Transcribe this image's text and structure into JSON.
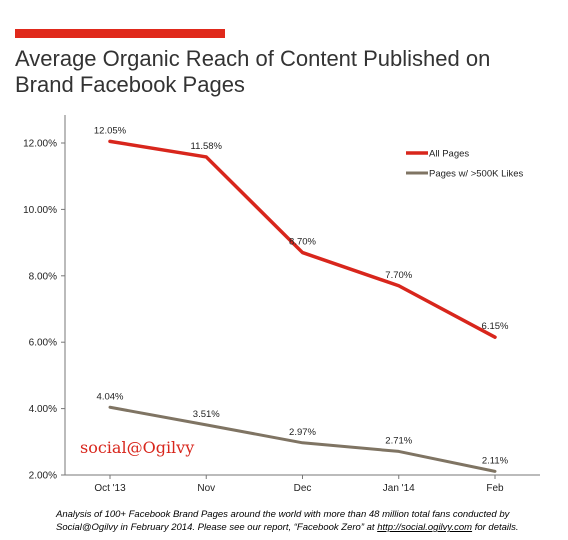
{
  "header": {
    "title": "Average Organic Reach of Content Published on Brand Facebook Pages"
  },
  "colors": {
    "accent_bar": "#e0291b",
    "all_pages": "#d8261c",
    "large_pages": "#7f7463",
    "axis": "#777777"
  },
  "brand": {
    "logo_text": "social@Ogilvy"
  },
  "footnote": {
    "text": "Analysis of 100+ Facebook Brand Pages around the world with more than 48 million total fans conducted by Social@Ogilvy in February 2014. Please see our report, “Facebook Zero” at ",
    "link": "http://social.ogilvy.com",
    "suffix": " for details."
  },
  "chart_data": {
    "type": "line",
    "title": "Average Organic Reach of Content Published on Brand Facebook Pages",
    "xlabel": "",
    "ylabel": "",
    "categories": [
      "Oct '13",
      "Nov",
      "Dec",
      "Jan '14",
      "Feb"
    ],
    "ylim": [
      2.0,
      12.0
    ],
    "yticks": [
      "2.00%",
      "4.00%",
      "6.00%",
      "8.00%",
      "10.00%",
      "12.00%"
    ],
    "grid": false,
    "legend_position": "top-right",
    "series": [
      {
        "name": "All Pages",
        "values": [
          12.05,
          11.58,
          8.7,
          7.7,
          6.15
        ],
        "labels": [
          "12.05%",
          "11.58%",
          "8.70%",
          "7.70%",
          "6.15%"
        ],
        "color": "#d8261c"
      },
      {
        "name": "Pages w/ >500K Likes",
        "values": [
          4.04,
          3.51,
          2.97,
          2.71,
          2.11
        ],
        "labels": [
          "4.04%",
          "3.51%",
          "2.97%",
          "2.71%",
          "2.11%"
        ],
        "color": "#7f7463"
      }
    ]
  }
}
